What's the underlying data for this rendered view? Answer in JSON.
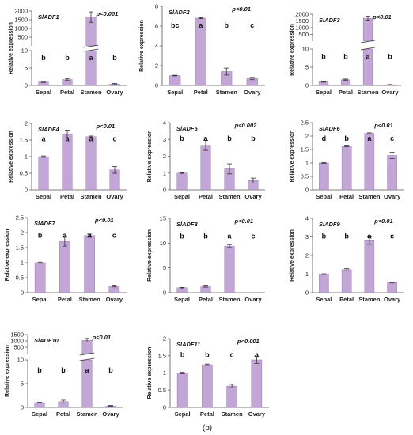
{
  "caption": "(b)",
  "chart_data": [
    {
      "type": "bar",
      "gene": "SlADF1",
      "pvalue": "p<0.001",
      "ylabel": "Relative expression",
      "categories": [
        "Sepal",
        "Petal",
        "Stamen",
        "Ovary"
      ],
      "values": [
        1.0,
        1.7,
        1650,
        0.4
      ],
      "errors": [
        0.15,
        0.3,
        300,
        0.2
      ],
      "letters": [
        "b",
        "b",
        "a",
        "b"
      ],
      "ylim": [
        0,
        10
      ],
      "ytick_labels": [
        "0",
        "5",
        "10"
      ],
      "break": {
        "upper_ylim": [
          0,
          2000
        ],
        "upper_ytick_labels": [
          "0",
          "500",
          "1000",
          "1500",
          "2000"
        ]
      }
    },
    {
      "type": "bar",
      "gene": "SlADF2",
      "pvalue": "p<0.01",
      "ylabel": "Relative expression",
      "categories": [
        "Sepal",
        "Petal",
        "Stamen",
        "Ovary"
      ],
      "values": [
        1.0,
        6.8,
        1.4,
        0.7
      ],
      "errors": [
        0.03,
        0.05,
        0.35,
        0.12
      ],
      "letters": [
        "bc",
        "a",
        "b",
        "c"
      ],
      "ylim": [
        0,
        8
      ],
      "ytick_labels": [
        "0",
        "2",
        "4",
        "6",
        "8"
      ]
    },
    {
      "type": "bar",
      "gene": "SlADF3",
      "pvalue": "p<0.01",
      "ylabel": "Relative expression",
      "categories": [
        "Sepal",
        "Petal",
        "Stamen",
        "Ovary"
      ],
      "values": [
        1.0,
        1.6,
        1700,
        0.2
      ],
      "errors": [
        0.1,
        0.15,
        150,
        0.05
      ],
      "letters": [
        "b",
        "b",
        "a",
        "b"
      ],
      "ylim": [
        0,
        10
      ],
      "ytick_labels": [
        "0",
        "5",
        "10"
      ],
      "break": {
        "upper_ylim": [
          0,
          2000
        ],
        "upper_ytick_labels": [
          "0",
          "500",
          "1000",
          "1500",
          "2000"
        ]
      }
    },
    {
      "type": "bar",
      "gene": "SlADF4",
      "pvalue": "p<0.01",
      "ylabel": "Relative expression",
      "categories": [
        "Sepal",
        "Petal",
        "Stamen",
        "Ovary"
      ],
      "values": [
        1.0,
        1.68,
        1.6,
        0.6
      ],
      "errors": [
        0.02,
        0.12,
        0.02,
        0.1
      ],
      "letters": [
        "a",
        "a",
        "a",
        "c"
      ],
      "ylim": [
        0,
        2
      ],
      "ytick_labels": [
        "0",
        "0.5",
        "1",
        "1.5",
        "2"
      ]
    },
    {
      "type": "bar",
      "gene": "SlADF5",
      "pvalue": "p<0.002",
      "ylabel": "Relative expression",
      "categories": [
        "Sepal",
        "Petal",
        "Stamen",
        "Ovary"
      ],
      "values": [
        1.0,
        2.65,
        1.25,
        0.55
      ],
      "errors": [
        0.02,
        0.3,
        0.3,
        0.15
      ],
      "letters": [
        "b",
        "a",
        "b",
        "b"
      ],
      "ylim": [
        0,
        4
      ],
      "ytick_labels": [
        "0",
        "1",
        "2",
        "3",
        "4"
      ]
    },
    {
      "type": "bar",
      "gene": "SlADF6",
      "pvalue": "p<0.01",
      "ylabel": "Relative expression",
      "categories": [
        "Sepal",
        "Petal",
        "Stamen",
        "Ovary"
      ],
      "values": [
        1.0,
        1.63,
        2.1,
        1.28
      ],
      "errors": [
        0.02,
        0.03,
        0.02,
        0.12
      ],
      "letters": [
        "d",
        "b",
        "a",
        "c"
      ],
      "ylim": [
        0,
        2.5
      ],
      "ytick_labels": [
        "0",
        "0.5",
        "1",
        "1.5",
        "2",
        "2.5"
      ]
    },
    {
      "type": "bar",
      "gene": "SlADF7",
      "pvalue": "p<0.01",
      "ylabel": "Relative expression",
      "categories": [
        "Sepal",
        "Petal",
        "Stamen",
        "Ovary"
      ],
      "values": [
        1.0,
        1.7,
        1.9,
        0.22
      ],
      "errors": [
        0.02,
        0.15,
        0.05,
        0.03
      ],
      "letters": [
        "b",
        "a",
        "a",
        "c"
      ],
      "ylim": [
        0,
        2.5
      ],
      "ytick_labels": [
        "0",
        "0.5",
        "1",
        "1.5",
        "2",
        "2.5"
      ]
    },
    {
      "type": "bar",
      "gene": "SlADF8",
      "pvalue": "p<0.01",
      "ylabel": "Relative expression",
      "categories": [
        "Sepal",
        "Petal",
        "Stamen",
        "Ovary"
      ],
      "values": [
        1.0,
        1.3,
        9.4,
        0
      ],
      "errors": [
        0.05,
        0.2,
        0.3,
        0
      ],
      "letters": [
        "b",
        "b",
        "a",
        "c"
      ],
      "ylim": [
        0,
        15
      ],
      "ytick_labels": [
        "0",
        "5",
        "10",
        "15"
      ]
    },
    {
      "type": "bar",
      "gene": "SlADF9",
      "pvalue": "p<0.01",
      "ylabel": "Relative expression",
      "categories": [
        "Sepal",
        "Petal",
        "Stamen",
        "Ovary"
      ],
      "values": [
        1.0,
        1.25,
        2.8,
        0.55
      ],
      "errors": [
        0.02,
        0.05,
        0.2,
        0.03
      ],
      "letters": [
        "b",
        "b",
        "a",
        "c"
      ],
      "ylim": [
        0,
        4
      ],
      "ytick_labels": [
        "0",
        "1",
        "2",
        "3",
        "4"
      ]
    },
    {
      "type": "bar",
      "gene": "SlADF10",
      "pvalue": "p<0.01",
      "ylabel": "Relative expression",
      "categories": [
        "Sepal",
        "Petal",
        "Stamen",
        "Ovary"
      ],
      "values": [
        1.0,
        1.2,
        1050,
        0.3
      ],
      "errors": [
        0.1,
        0.3,
        150,
        0.1
      ],
      "letters": [
        "b",
        "b",
        "a",
        "b"
      ],
      "ylim": [
        0,
        10
      ],
      "ytick_labels": [
        "0",
        "5",
        "10"
      ],
      "break": {
        "upper_ylim": [
          0,
          1500
        ],
        "upper_ytick_labels": [
          "0",
          "500",
          "1000",
          "1500"
        ]
      }
    },
    {
      "type": "bar",
      "gene": "SlADF11",
      "pvalue": "p<0.001",
      "ylabel": "Relative expression",
      "categories": [
        "Sepal",
        "Petal",
        "Stamen",
        "Ovary"
      ],
      "values": [
        1.0,
        1.24,
        0.62,
        1.38
      ],
      "errors": [
        0.02,
        0.02,
        0.05,
        0.1
      ],
      "letters": [
        "b",
        "b",
        "c",
        "a"
      ],
      "ylim": [
        0,
        2
      ],
      "ytick_labels": [
        "0",
        "0.5",
        "1",
        "1.5",
        "2"
      ]
    }
  ],
  "style": {
    "bar_color": "#c2a6d6",
    "bar_edge": "#8a6aa3",
    "axis_color": "#555555"
  }
}
